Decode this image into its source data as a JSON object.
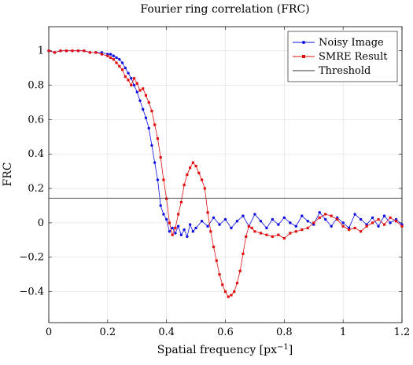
{
  "chart_data": {
    "type": "line",
    "title": "Fourier ring correlation (FRC)",
    "xlabel": "Spatial frequency [px",
    "xlabel_sup": "−1",
    "xlabel_end": "]",
    "ylabel": "FRC",
    "xlim": [
      0,
      1.2
    ],
    "ylim": [
      -0.58,
      1.14
    ],
    "xticks": [
      0,
      0.2,
      0.4,
      0.6,
      0.8,
      1,
      1.2
    ],
    "xtick_labels": [
      "0",
      "0.2",
      "0.4",
      "0.6",
      "0.8",
      "1",
      "1.2"
    ],
    "yticks": [
      -0.4,
      -0.2,
      0,
      0.2,
      0.4,
      0.6,
      0.8,
      1
    ],
    "ytick_labels": [
      "−0.4",
      "−0.2",
      "0",
      "0.2",
      "0.4",
      "0.6",
      "0.8",
      "1"
    ],
    "grid": true,
    "legend_position": "top-right",
    "series": [
      {
        "name": "Noisy Image",
        "color": "#1010e0",
        "marker": "circle",
        "x": [
          0.0,
          0.02,
          0.04,
          0.06,
          0.08,
          0.1,
          0.12,
          0.14,
          0.16,
          0.18,
          0.2,
          0.21,
          0.22,
          0.23,
          0.24,
          0.25,
          0.26,
          0.27,
          0.28,
          0.29,
          0.3,
          0.31,
          0.32,
          0.33,
          0.34,
          0.35,
          0.36,
          0.37,
          0.38,
          0.39,
          0.4,
          0.41,
          0.42,
          0.43,
          0.44,
          0.45,
          0.46,
          0.47,
          0.48,
          0.49,
          0.5,
          0.52,
          0.54,
          0.56,
          0.58,
          0.6,
          0.62,
          0.64,
          0.66,
          0.68,
          0.7,
          0.72,
          0.74,
          0.76,
          0.78,
          0.8,
          0.82,
          0.84,
          0.86,
          0.88,
          0.9,
          0.92,
          0.94,
          0.96,
          0.98,
          1.0,
          1.02,
          1.04,
          1.06,
          1.08,
          1.1,
          1.12,
          1.14,
          1.16,
          1.18,
          1.2
        ],
        "y": [
          1.0,
          0.99,
          1.0,
          1.0,
          1.0,
          1.0,
          1.0,
          0.99,
          0.99,
          0.99,
          0.98,
          0.98,
          0.97,
          0.96,
          0.95,
          0.93,
          0.9,
          0.87,
          0.84,
          0.8,
          0.76,
          0.71,
          0.66,
          0.61,
          0.55,
          0.45,
          0.35,
          0.25,
          0.1,
          0.05,
          0.02,
          -0.05,
          -0.03,
          -0.06,
          -0.02,
          -0.07,
          -0.04,
          -0.08,
          -0.01,
          -0.05,
          -0.03,
          0.01,
          -0.02,
          0.03,
          -0.01,
          0.02,
          -0.03,
          0.01,
          0.04,
          -0.02,
          0.05,
          0.01,
          -0.03,
          0.02,
          -0.01,
          0.03,
          0.0,
          -0.02,
          0.04,
          0.01,
          -0.01,
          0.06,
          0.02,
          -0.02,
          0.03,
          0.0,
          -0.03,
          0.05,
          0.02,
          -0.01,
          0.03,
          -0.02,
          0.04,
          0.0,
          0.02,
          -0.01
        ]
      },
      {
        "name": "SMRE Result",
        "color": "#e01010",
        "marker": "square",
        "x": [
          0.0,
          0.02,
          0.04,
          0.06,
          0.08,
          0.1,
          0.12,
          0.14,
          0.16,
          0.18,
          0.2,
          0.21,
          0.22,
          0.23,
          0.24,
          0.25,
          0.26,
          0.27,
          0.28,
          0.29,
          0.3,
          0.31,
          0.32,
          0.33,
          0.34,
          0.35,
          0.36,
          0.37,
          0.38,
          0.39,
          0.4,
          0.41,
          0.42,
          0.43,
          0.44,
          0.45,
          0.46,
          0.47,
          0.48,
          0.49,
          0.5,
          0.51,
          0.52,
          0.53,
          0.54,
          0.55,
          0.56,
          0.57,
          0.58,
          0.59,
          0.6,
          0.61,
          0.62,
          0.63,
          0.64,
          0.65,
          0.66,
          0.67,
          0.68,
          0.69,
          0.7,
          0.72,
          0.74,
          0.76,
          0.78,
          0.8,
          0.82,
          0.84,
          0.86,
          0.88,
          0.9,
          0.92,
          0.94,
          0.96,
          0.98,
          1.0,
          1.02,
          1.04,
          1.06,
          1.08,
          1.1,
          1.12,
          1.14,
          1.16,
          1.18,
          1.2
        ],
        "y": [
          1.0,
          0.99,
          1.0,
          1.0,
          1.0,
          1.0,
          1.0,
          0.99,
          0.99,
          0.98,
          0.97,
          0.96,
          0.95,
          0.93,
          0.91,
          0.89,
          0.85,
          0.83,
          0.8,
          0.84,
          0.81,
          0.77,
          0.78,
          0.74,
          0.7,
          0.65,
          0.57,
          0.49,
          0.38,
          0.25,
          0.14,
          0.0,
          -0.07,
          -0.03,
          0.05,
          0.12,
          0.22,
          0.28,
          0.32,
          0.35,
          0.33,
          0.29,
          0.25,
          0.2,
          0.06,
          -0.05,
          -0.14,
          -0.22,
          -0.3,
          -0.36,
          -0.4,
          -0.43,
          -0.42,
          -0.4,
          -0.35,
          -0.28,
          -0.18,
          -0.08,
          -0.02,
          -0.03,
          -0.05,
          -0.06,
          -0.07,
          -0.08,
          -0.07,
          -0.09,
          -0.06,
          -0.05,
          -0.04,
          -0.03,
          0.0,
          0.03,
          0.05,
          0.04,
          0.02,
          -0.02,
          -0.04,
          -0.03,
          -0.05,
          -0.02,
          0.0,
          0.02,
          -0.01,
          0.03,
          0.01,
          -0.02
        ]
      },
      {
        "name": "Threshold",
        "color": "#333333",
        "marker": "none",
        "x": [
          0,
          1.2
        ],
        "y": [
          0.143,
          0.143
        ]
      }
    ]
  }
}
